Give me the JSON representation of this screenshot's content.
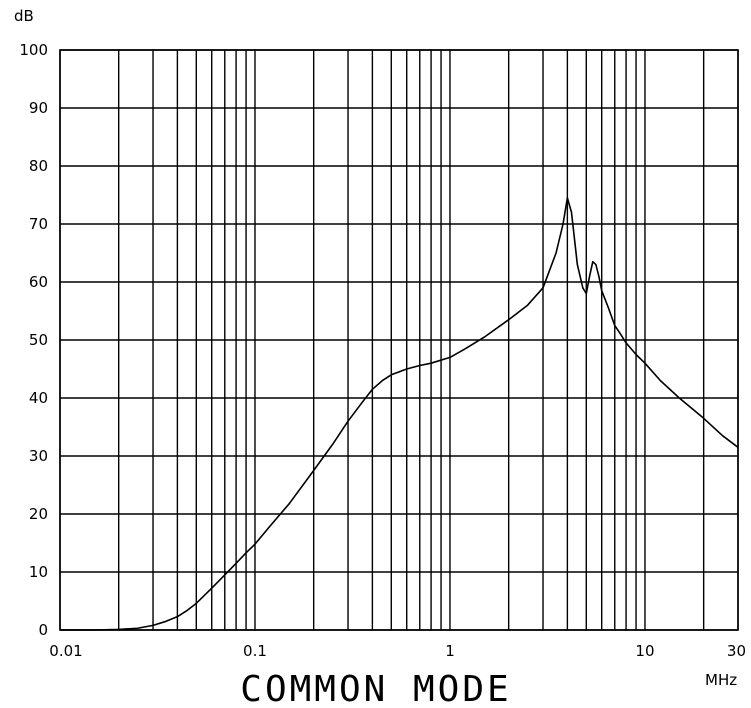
{
  "chart_data": {
    "type": "line",
    "title": "COMMON MODE",
    "xlabel": "MHz",
    "ylabel": "dB",
    "x_scale": "log",
    "xlim": [
      0.01,
      30
    ],
    "ylim": [
      0,
      100
    ],
    "grid": true,
    "x_tick_labels": [
      "0.01",
      "0.1",
      "1",
      "10",
      "30"
    ],
    "x_tick_values": [
      0.01,
      0.1,
      1,
      10,
      30
    ],
    "y_tick_labels": [
      "0",
      "10",
      "20",
      "30",
      "40",
      "50",
      "60",
      "70",
      "80",
      "90",
      "100"
    ],
    "y_tick_values": [
      0,
      10,
      20,
      30,
      40,
      50,
      60,
      70,
      80,
      90,
      100
    ],
    "line_color": "#000000",
    "series": [
      {
        "x": [
          0.01,
          0.015,
          0.02,
          0.025,
          0.03,
          0.035,
          0.04,
          0.045,
          0.05,
          0.06,
          0.07,
          0.08,
          0.09,
          0.1,
          0.12,
          0.15,
          0.2,
          0.25,
          0.3,
          0.35,
          0.4,
          0.45,
          0.5,
          0.6,
          0.7,
          0.8,
          1.0,
          1.2,
          1.5,
          2.0,
          2.5,
          3.0,
          3.5,
          3.8,
          4.0,
          4.2,
          4.5,
          4.8,
          5.0,
          5.2,
          5.4,
          5.6,
          5.8,
          6.0,
          6.5,
          7.0,
          7.5,
          8.0,
          9.0,
          10,
          12,
          15,
          20,
          25,
          30
        ],
        "y": [
          0,
          0,
          0.1,
          0.3,
          0.8,
          1.5,
          2.3,
          3.4,
          4.6,
          7.2,
          9.5,
          11.5,
          13.3,
          14.8,
          18.0,
          21.8,
          27.5,
          32.0,
          36.0,
          39.0,
          41.5,
          43.0,
          44.0,
          45.0,
          45.6,
          46.0,
          47.0,
          48.5,
          50.5,
          53.5,
          56.0,
          59.0,
          65.0,
          70.0,
          74.5,
          72.0,
          63.0,
          59.0,
          58.0,
          61.0,
          63.5,
          63.0,
          61.0,
          58.5,
          55.5,
          52.5,
          51.0,
          49.5,
          47.5,
          46.0,
          43.0,
          40.0,
          36.5,
          33.5,
          31.5
        ]
      }
    ]
  }
}
